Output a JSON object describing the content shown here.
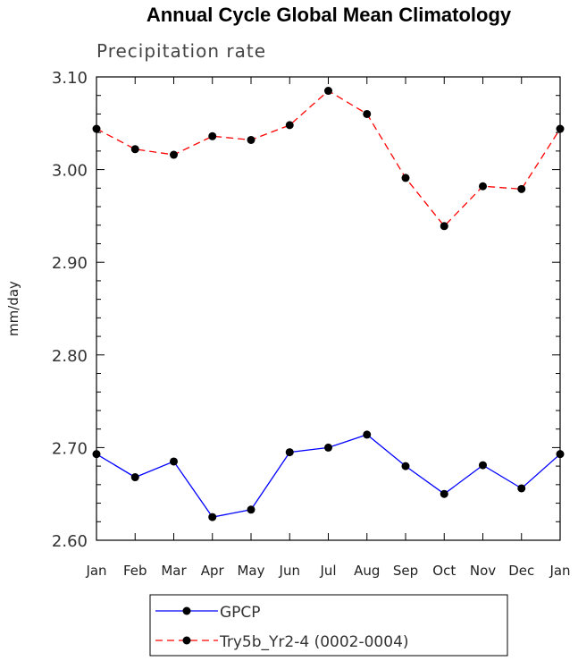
{
  "chart_data": {
    "type": "line",
    "title": "Annual Cycle Global Mean Climatology",
    "subtitle": "Precipitation rate",
    "xlabel": "",
    "ylabel": "mm/day",
    "categories": [
      "Jan",
      "Feb",
      "Mar",
      "Apr",
      "May",
      "Jun",
      "Jul",
      "Aug",
      "Sep",
      "Oct",
      "Nov",
      "Dec",
      "Jan"
    ],
    "ylim": [
      2.6,
      3.1
    ],
    "yticks": [
      "2.60",
      "2.70",
      "2.80",
      "2.90",
      "3.00",
      "3.10"
    ],
    "grid": false,
    "legend_position": "bottom",
    "series": [
      {
        "name": "GPCP",
        "color": "#0000ff",
        "line_style": "solid",
        "marker": "filled-circle",
        "values": [
          2.693,
          2.668,
          2.685,
          2.625,
          2.633,
          2.695,
          2.7,
          2.714,
          2.68,
          2.65,
          2.681,
          2.656,
          2.693
        ]
      },
      {
        "name": "Try5b_Yr2-4 (0002-0004)",
        "color": "#ff0000",
        "line_style": "dashed",
        "marker": "filled-circle",
        "values": [
          3.044,
          3.022,
          3.016,
          3.036,
          3.032,
          3.048,
          3.085,
          3.06,
          2.991,
          2.939,
          2.982,
          2.979,
          3.044
        ]
      }
    ]
  }
}
